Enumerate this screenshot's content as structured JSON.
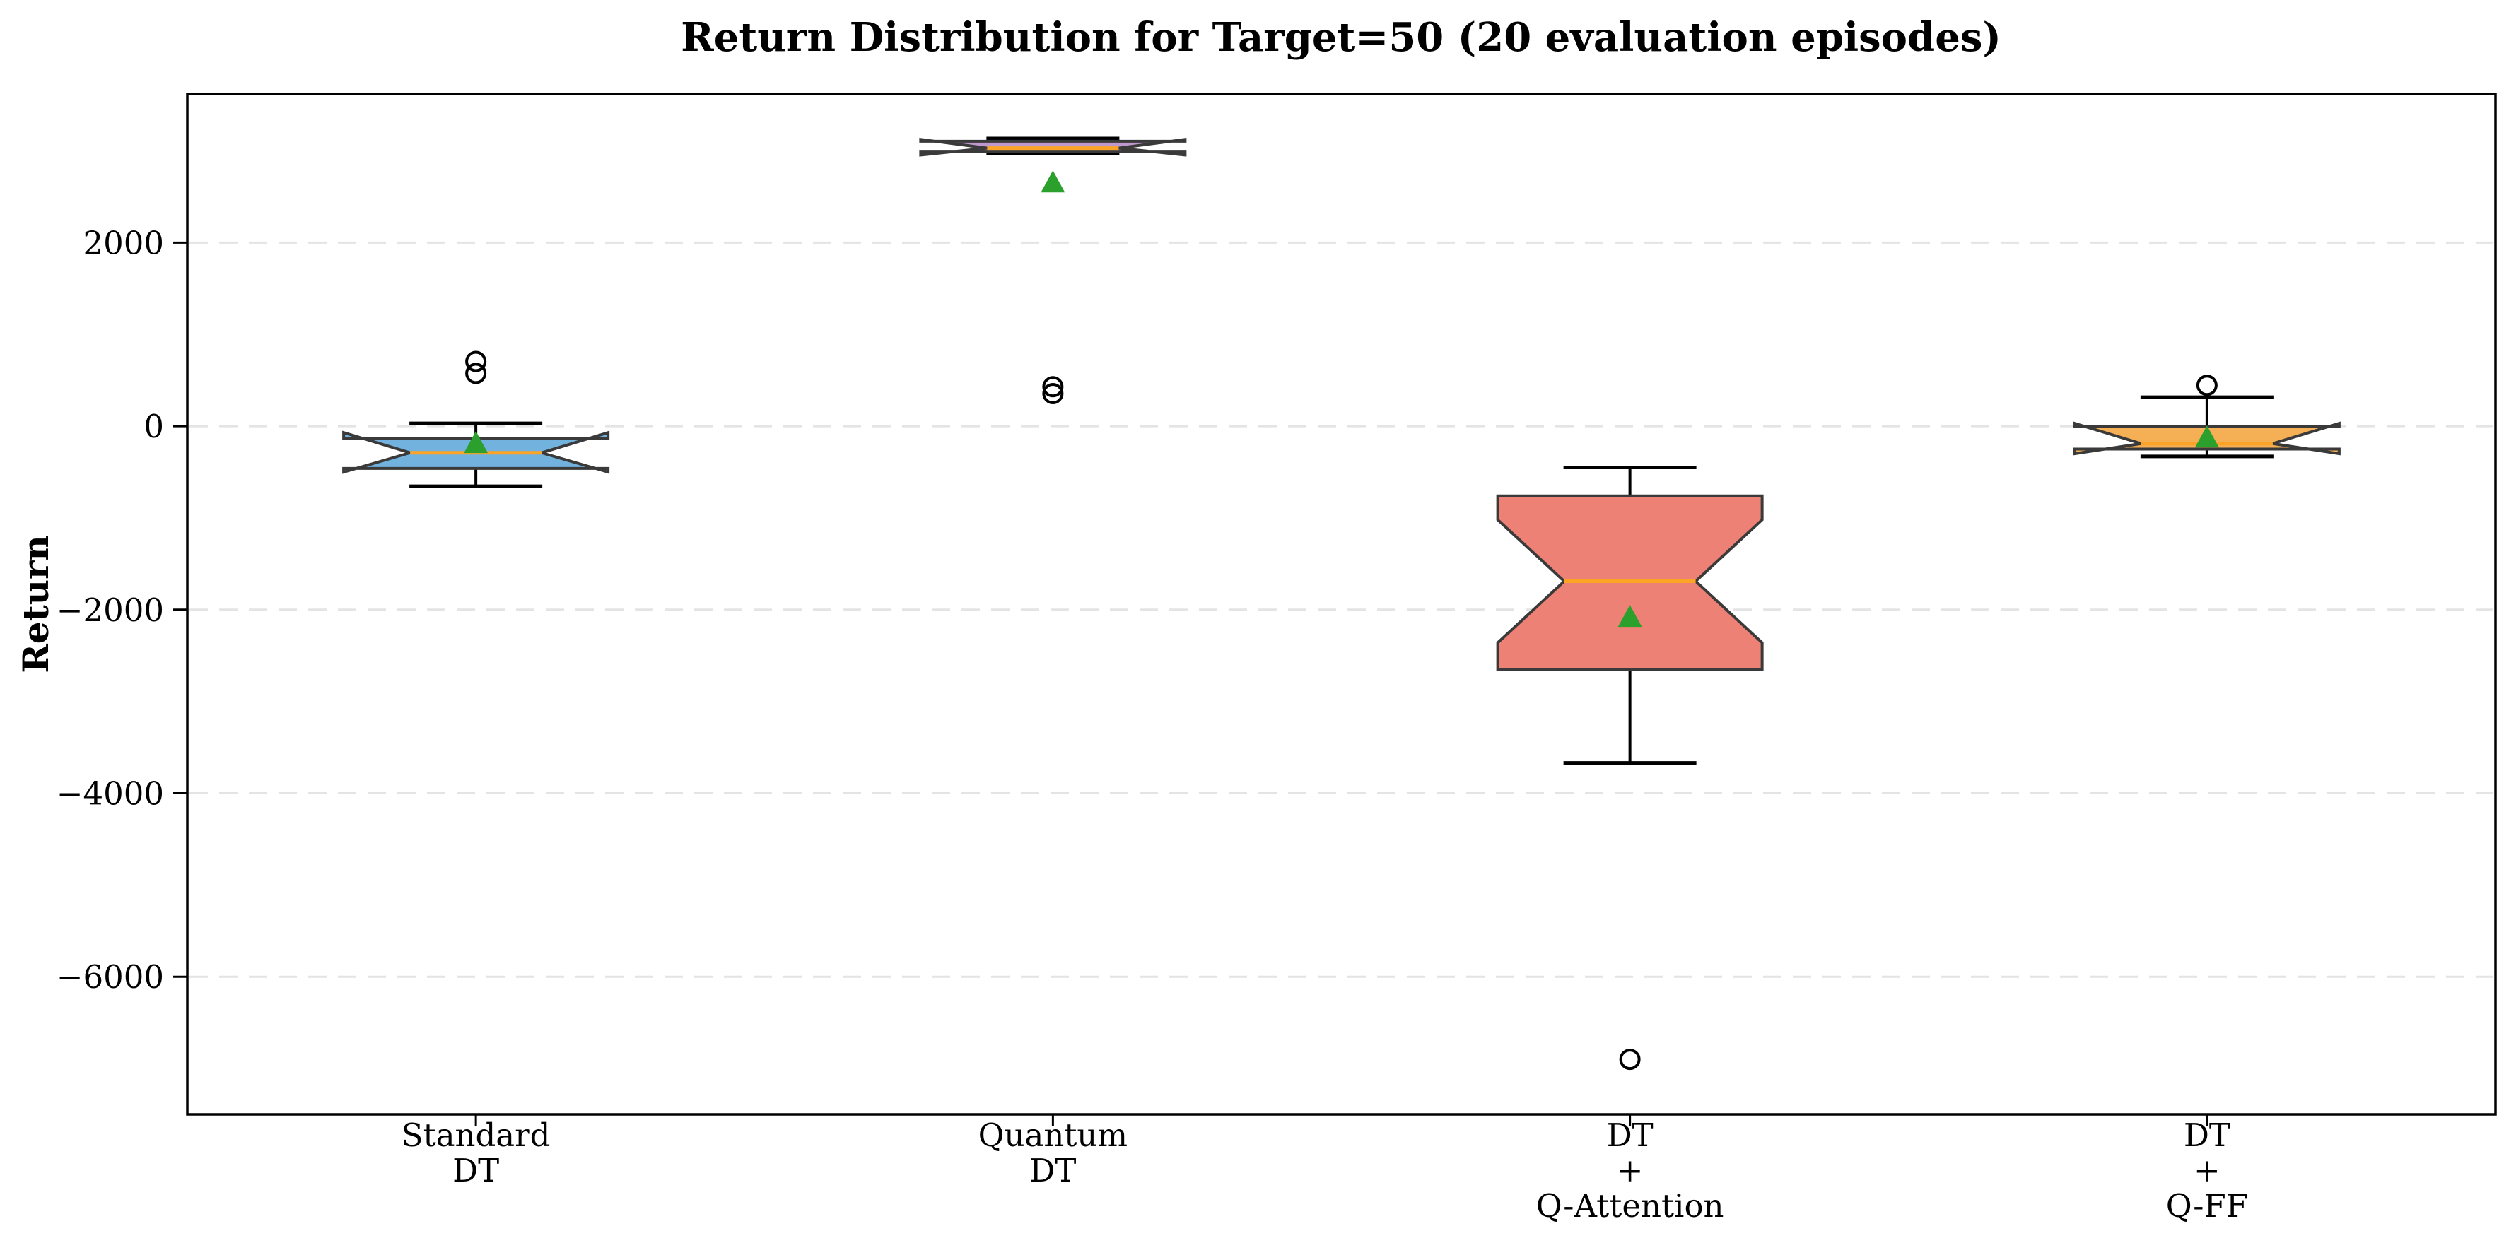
{
  "chart_data": {
    "type": "boxplot",
    "title": "Return Distribution for Target=50 (20 evaluation episodes)",
    "ylabel": "Return",
    "xlabel": "",
    "yticks": [
      2000,
      0,
      -2000,
      -4000,
      -6000
    ],
    "ylim": [
      -7500,
      3620
    ],
    "grid": {
      "axis": "y",
      "style": "dashed",
      "color": "#E4E4E4"
    },
    "legend": "none",
    "categories": [
      [
        "Standard",
        "DT"
      ],
      [
        "Quantum",
        "DT"
      ],
      [
        "DT",
        "+",
        "Q-Attention"
      ],
      [
        "DT",
        "+",
        "Q-FF"
      ]
    ],
    "boxes": [
      {
        "label": "Standard DT",
        "fill": "#72B2DF",
        "whisker_low": -655,
        "q1": -460,
        "median": -290,
        "q3": -130,
        "whisker_high": 30,
        "notch_low": -500,
        "notch_high": -70,
        "mean": -185,
        "outliers": [
          575,
          705
        ]
      },
      {
        "label": "Quantum DT",
        "fill": "#BE97CC",
        "whisker_low": 2975,
        "q1": 2995,
        "median": 3030,
        "q3": 3105,
        "whisker_high": 3135,
        "notch_low": 2955,
        "notch_high": 3125,
        "mean": 2655,
        "outliers": [
          355,
          430
        ]
      },
      {
        "label": "DT + Q-Attention",
        "fill": "#EE8176",
        "whisker_low": -3670,
        "q1": -2655,
        "median": -1690,
        "q3": -760,
        "whisker_high": -450,
        "notch_low": -2360,
        "notch_high": -1020,
        "mean": -2080,
        "outliers": [
          -6900
        ]
      },
      {
        "label": "DT + Q-FF",
        "fill": "#F5AF54",
        "whisker_low": -330,
        "q1": -250,
        "median": -190,
        "q3": 0,
        "whisker_high": 315,
        "notch_low": -300,
        "notch_high": 30,
        "mean": -125,
        "outliers": [
          445
        ]
      }
    ],
    "colors": {
      "median": "#FCA426",
      "mean_marker": "#2CA02C",
      "box_edge": "#3A3A3A",
      "whisker": "#000000",
      "outlier_stroke": "#000000",
      "spine": "#000000",
      "grid": "#E4E4E4"
    },
    "mean_marker_shape": "triangle-up",
    "outlier_marker_shape": "circle"
  }
}
